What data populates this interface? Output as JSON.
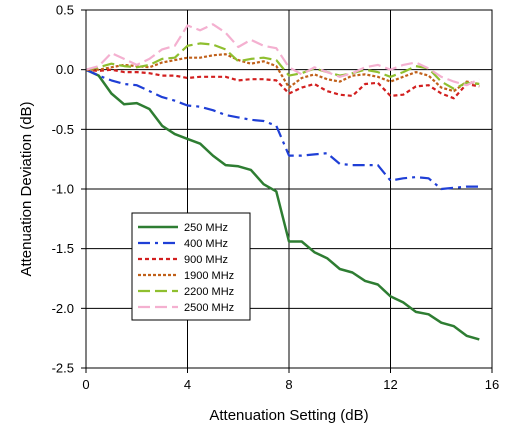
{
  "chart_data": {
    "type": "line",
    "xlabel": "Attenuation Setting (dB)",
    "ylabel": "Attenuation Deviation (dB)",
    "xlim": [
      0,
      16
    ],
    "ylim": [
      -2.5,
      0.5
    ],
    "xticks": [
      0,
      4,
      8,
      12,
      16
    ],
    "yticks": [
      0.5,
      0.0,
      -0.5,
      -1.0,
      -1.5,
      -2.0,
      -2.5
    ],
    "xtick_labels": [
      "0",
      "4",
      "8",
      "12",
      "16"
    ],
    "ytick_labels": [
      "0.5",
      "0.0",
      "-0.5",
      "-1.0",
      "-1.5",
      "-2.0",
      "-2.5"
    ],
    "grid": true,
    "legend_position": "lower-left",
    "series": [
      {
        "name": "250 MHz",
        "color": "#2e7d32",
        "dash": "solid",
        "x": [
          0,
          0.5,
          1,
          1.5,
          2,
          2.5,
          3,
          3.5,
          4,
          4.5,
          5,
          5.5,
          6,
          6.5,
          7,
          7.5,
          8,
          8.5,
          9,
          9.5,
          10,
          10.5,
          11,
          11.5,
          12,
          12.5,
          13,
          13.5,
          14,
          14.5,
          15,
          15.5
        ],
        "y": [
          0.0,
          -0.05,
          -0.2,
          -0.29,
          -0.28,
          -0.33,
          -0.47,
          -0.54,
          -0.58,
          -0.62,
          -0.72,
          -0.8,
          -0.81,
          -0.84,
          -0.96,
          -1.02,
          -1.44,
          -1.44,
          -1.53,
          -1.58,
          -1.67,
          -1.7,
          -1.77,
          -1.8,
          -1.9,
          -1.95,
          -2.03,
          -2.05,
          -2.12,
          -2.15,
          -2.23,
          -2.26
        ]
      },
      {
        "name": "400 MHz",
        "color": "#1f3fd6",
        "dash": "dashdot",
        "x": [
          0,
          0.5,
          1,
          1.5,
          2,
          2.5,
          3,
          3.5,
          4,
          4.5,
          5,
          5.5,
          6,
          6.5,
          7,
          7.5,
          8,
          8.5,
          9,
          9.5,
          10,
          10.5,
          11,
          11.5,
          12,
          12.5,
          13,
          13.5,
          14,
          14.5,
          15,
          15.5
        ],
        "y": [
          0.0,
          -0.05,
          -0.09,
          -0.12,
          -0.13,
          -0.18,
          -0.23,
          -0.26,
          -0.3,
          -0.31,
          -0.34,
          -0.38,
          -0.4,
          -0.42,
          -0.43,
          -0.47,
          -0.72,
          -0.72,
          -0.71,
          -0.7,
          -0.79,
          -0.8,
          -0.8,
          -0.8,
          -0.93,
          -0.91,
          -0.9,
          -0.91,
          -1.0,
          -0.99,
          -0.98,
          -0.98
        ]
      },
      {
        "name": "900 MHz",
        "color": "#d21f1f",
        "dash": "dotted",
        "x": [
          0,
          0.5,
          1,
          1.5,
          2,
          2.5,
          3,
          3.5,
          4,
          4.5,
          5,
          5.5,
          6,
          6.5,
          7,
          7.5,
          8,
          8.5,
          9,
          9.5,
          10,
          10.5,
          11,
          11.5,
          12,
          12.5,
          13,
          13.5,
          14,
          14.5,
          15,
          15.5
        ],
        "y": [
          0.0,
          -0.01,
          0.0,
          -0.02,
          -0.02,
          -0.03,
          -0.05,
          -0.05,
          -0.07,
          -0.06,
          -0.06,
          -0.06,
          -0.09,
          -0.08,
          -0.08,
          -0.09,
          -0.2,
          -0.15,
          -0.12,
          -0.18,
          -0.21,
          -0.22,
          -0.12,
          -0.11,
          -0.22,
          -0.21,
          -0.14,
          -0.13,
          -0.2,
          -0.24,
          -0.12,
          -0.14
        ]
      },
      {
        "name": "1900 MHz",
        "color": "#c0601a",
        "dash": "densedot",
        "x": [
          0,
          0.5,
          1,
          1.5,
          2,
          2.5,
          3,
          3.5,
          4,
          4.5,
          5,
          5.5,
          6,
          6.5,
          7,
          7.5,
          8,
          8.5,
          9,
          9.5,
          10,
          10.5,
          11,
          11.5,
          12,
          12.5,
          13,
          13.5,
          14,
          14.5,
          15,
          15.5
        ],
        "y": [
          0.0,
          0.0,
          0.02,
          0.04,
          0.03,
          0.02,
          0.06,
          0.08,
          0.1,
          0.1,
          0.12,
          0.13,
          0.08,
          0.05,
          0.07,
          0.03,
          -0.15,
          -0.07,
          -0.04,
          -0.08,
          -0.1,
          -0.05,
          -0.04,
          -0.06,
          -0.1,
          -0.06,
          -0.02,
          -0.05,
          -0.15,
          -0.18,
          -0.1,
          -0.12
        ]
      },
      {
        "name": "2200 MHz",
        "color": "#8fbf2f",
        "dash": "longdash",
        "x": [
          0,
          0.5,
          1,
          1.5,
          2,
          2.5,
          3,
          3.5,
          4,
          4.5,
          5,
          5.5,
          6,
          6.5,
          7,
          7.5,
          8,
          8.5,
          9,
          9.5,
          10,
          10.5,
          11,
          11.5,
          12,
          12.5,
          13,
          13.5,
          14,
          14.5,
          15,
          15.5
        ],
        "y": [
          0.0,
          0.02,
          0.05,
          0.03,
          0.02,
          0.04,
          0.09,
          0.1,
          0.2,
          0.22,
          0.21,
          0.17,
          0.07,
          0.09,
          0.1,
          0.08,
          -0.05,
          -0.03,
          0.01,
          -0.02,
          -0.05,
          -0.03,
          0.0,
          -0.02,
          -0.06,
          -0.02,
          0.03,
          0.01,
          -0.1,
          -0.16,
          -0.11,
          -0.12
        ]
      },
      {
        "name": "2500 MHz",
        "color": "#f4b0d0",
        "dash": "longdash",
        "x": [
          0,
          0.5,
          1,
          1.5,
          2,
          2.5,
          3,
          3.5,
          4,
          4.5,
          5,
          5.5,
          6,
          6.5,
          7,
          7.5,
          8,
          8.5,
          9,
          9.5,
          10,
          10.5,
          11,
          11.5,
          12,
          12.5,
          13,
          13.5,
          14,
          14.5,
          15,
          15.5
        ],
        "y": [
          0.0,
          0.03,
          0.14,
          0.09,
          0.04,
          0.09,
          0.17,
          0.2,
          0.37,
          0.33,
          0.38,
          0.31,
          0.19,
          0.25,
          0.2,
          0.18,
          0.02,
          -0.04,
          0.02,
          -0.02,
          -0.06,
          -0.03,
          0.02,
          0.04,
          0.0,
          0.04,
          0.06,
          0.01,
          -0.06,
          -0.1,
          -0.13,
          -0.08
        ]
      }
    ]
  }
}
